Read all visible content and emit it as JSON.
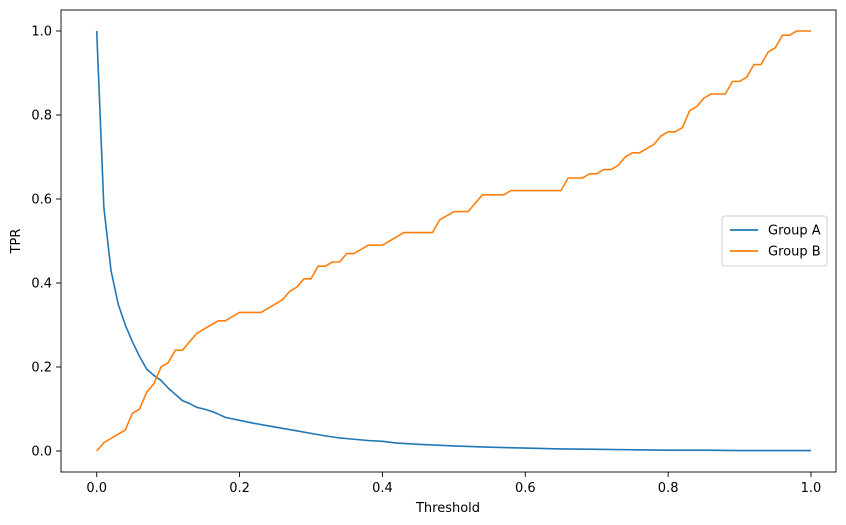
{
  "chart_data": {
    "type": "line",
    "title": "",
    "xlabel": "Threshold",
    "ylabel": "TPR",
    "xlim": [
      -0.05,
      1.035
    ],
    "ylim": [
      -0.05,
      1.05
    ],
    "x_ticks": [
      0.0,
      0.2,
      0.4,
      0.6,
      0.8,
      1.0
    ],
    "x_tick_labels": [
      "0.0",
      "0.2",
      "0.4",
      "0.6",
      "0.8",
      "1.0"
    ],
    "y_ticks": [
      0.0,
      0.2,
      0.4,
      0.6,
      0.8,
      1.0
    ],
    "y_tick_labels": [
      "0.0",
      "0.2",
      "0.4",
      "0.6",
      "0.8",
      "1.0"
    ],
    "grid": false,
    "legend_position": "center-right",
    "series": [
      {
        "name": "Group A",
        "color": "#1f77b4",
        "x": [
          0.0,
          0.01,
          0.02,
          0.03,
          0.04,
          0.05,
          0.06,
          0.07,
          0.08,
          0.09,
          0.1,
          0.11,
          0.12,
          0.13,
          0.14,
          0.15,
          0.16,
          0.17,
          0.18,
          0.2,
          0.22,
          0.24,
          0.26,
          0.28,
          0.3,
          0.32,
          0.34,
          0.36,
          0.38,
          0.4,
          0.42,
          0.45,
          0.5,
          0.55,
          0.6,
          0.65,
          0.7,
          0.75,
          0.8,
          0.85,
          0.9,
          0.95,
          1.0
        ],
        "y": [
          1.0,
          0.58,
          0.43,
          0.35,
          0.3,
          0.26,
          0.225,
          0.195,
          0.18,
          0.168,
          0.15,
          0.135,
          0.12,
          0.113,
          0.104,
          0.1,
          0.095,
          0.088,
          0.08,
          0.073,
          0.066,
          0.06,
          0.054,
          0.048,
          0.042,
          0.036,
          0.031,
          0.028,
          0.025,
          0.023,
          0.019,
          0.016,
          0.012,
          0.009,
          0.007,
          0.005,
          0.004,
          0.003,
          0.002,
          0.002,
          0.001,
          0.001,
          0.001
        ]
      },
      {
        "name": "Group B",
        "color": "#ff7f0e",
        "x": [
          0.0,
          0.01,
          0.02,
          0.03,
          0.04,
          0.05,
          0.06,
          0.07,
          0.08,
          0.09,
          0.1,
          0.11,
          0.12,
          0.13,
          0.14,
          0.15,
          0.16,
          0.17,
          0.18,
          0.19,
          0.2,
          0.21,
          0.22,
          0.23,
          0.24,
          0.25,
          0.26,
          0.27,
          0.28,
          0.29,
          0.3,
          0.31,
          0.32,
          0.33,
          0.34,
          0.35,
          0.36,
          0.37,
          0.38,
          0.39,
          0.4,
          0.41,
          0.42,
          0.43,
          0.44,
          0.45,
          0.46,
          0.47,
          0.48,
          0.49,
          0.5,
          0.51,
          0.52,
          0.53,
          0.54,
          0.55,
          0.56,
          0.57,
          0.58,
          0.59,
          0.6,
          0.61,
          0.62,
          0.63,
          0.64,
          0.65,
          0.66,
          0.67,
          0.68,
          0.69,
          0.7,
          0.71,
          0.72,
          0.73,
          0.74,
          0.75,
          0.76,
          0.77,
          0.78,
          0.79,
          0.8,
          0.81,
          0.82,
          0.83,
          0.84,
          0.85,
          0.86,
          0.87,
          0.88,
          0.89,
          0.9,
          0.91,
          0.92,
          0.93,
          0.94,
          0.95,
          0.96,
          0.97,
          0.98,
          0.99,
          1.0
        ],
        "y": [
          0.0,
          0.02,
          0.03,
          0.04,
          0.05,
          0.09,
          0.1,
          0.14,
          0.16,
          0.2,
          0.21,
          0.24,
          0.24,
          0.26,
          0.28,
          0.29,
          0.3,
          0.31,
          0.31,
          0.32,
          0.33,
          0.33,
          0.33,
          0.33,
          0.34,
          0.35,
          0.36,
          0.38,
          0.39,
          0.41,
          0.41,
          0.44,
          0.44,
          0.45,
          0.45,
          0.47,
          0.47,
          0.48,
          0.49,
          0.49,
          0.49,
          0.5,
          0.51,
          0.52,
          0.52,
          0.52,
          0.52,
          0.52,
          0.55,
          0.56,
          0.57,
          0.57,
          0.57,
          0.59,
          0.61,
          0.61,
          0.61,
          0.61,
          0.62,
          0.62,
          0.62,
          0.62,
          0.62,
          0.62,
          0.62,
          0.62,
          0.65,
          0.65,
          0.65,
          0.66,
          0.66,
          0.67,
          0.67,
          0.68,
          0.7,
          0.71,
          0.71,
          0.72,
          0.73,
          0.75,
          0.76,
          0.76,
          0.77,
          0.81,
          0.82,
          0.84,
          0.85,
          0.85,
          0.85,
          0.88,
          0.88,
          0.89,
          0.92,
          0.92,
          0.95,
          0.96,
          0.99,
          0.99,
          1.0,
          1.0,
          1.0
        ]
      }
    ]
  }
}
